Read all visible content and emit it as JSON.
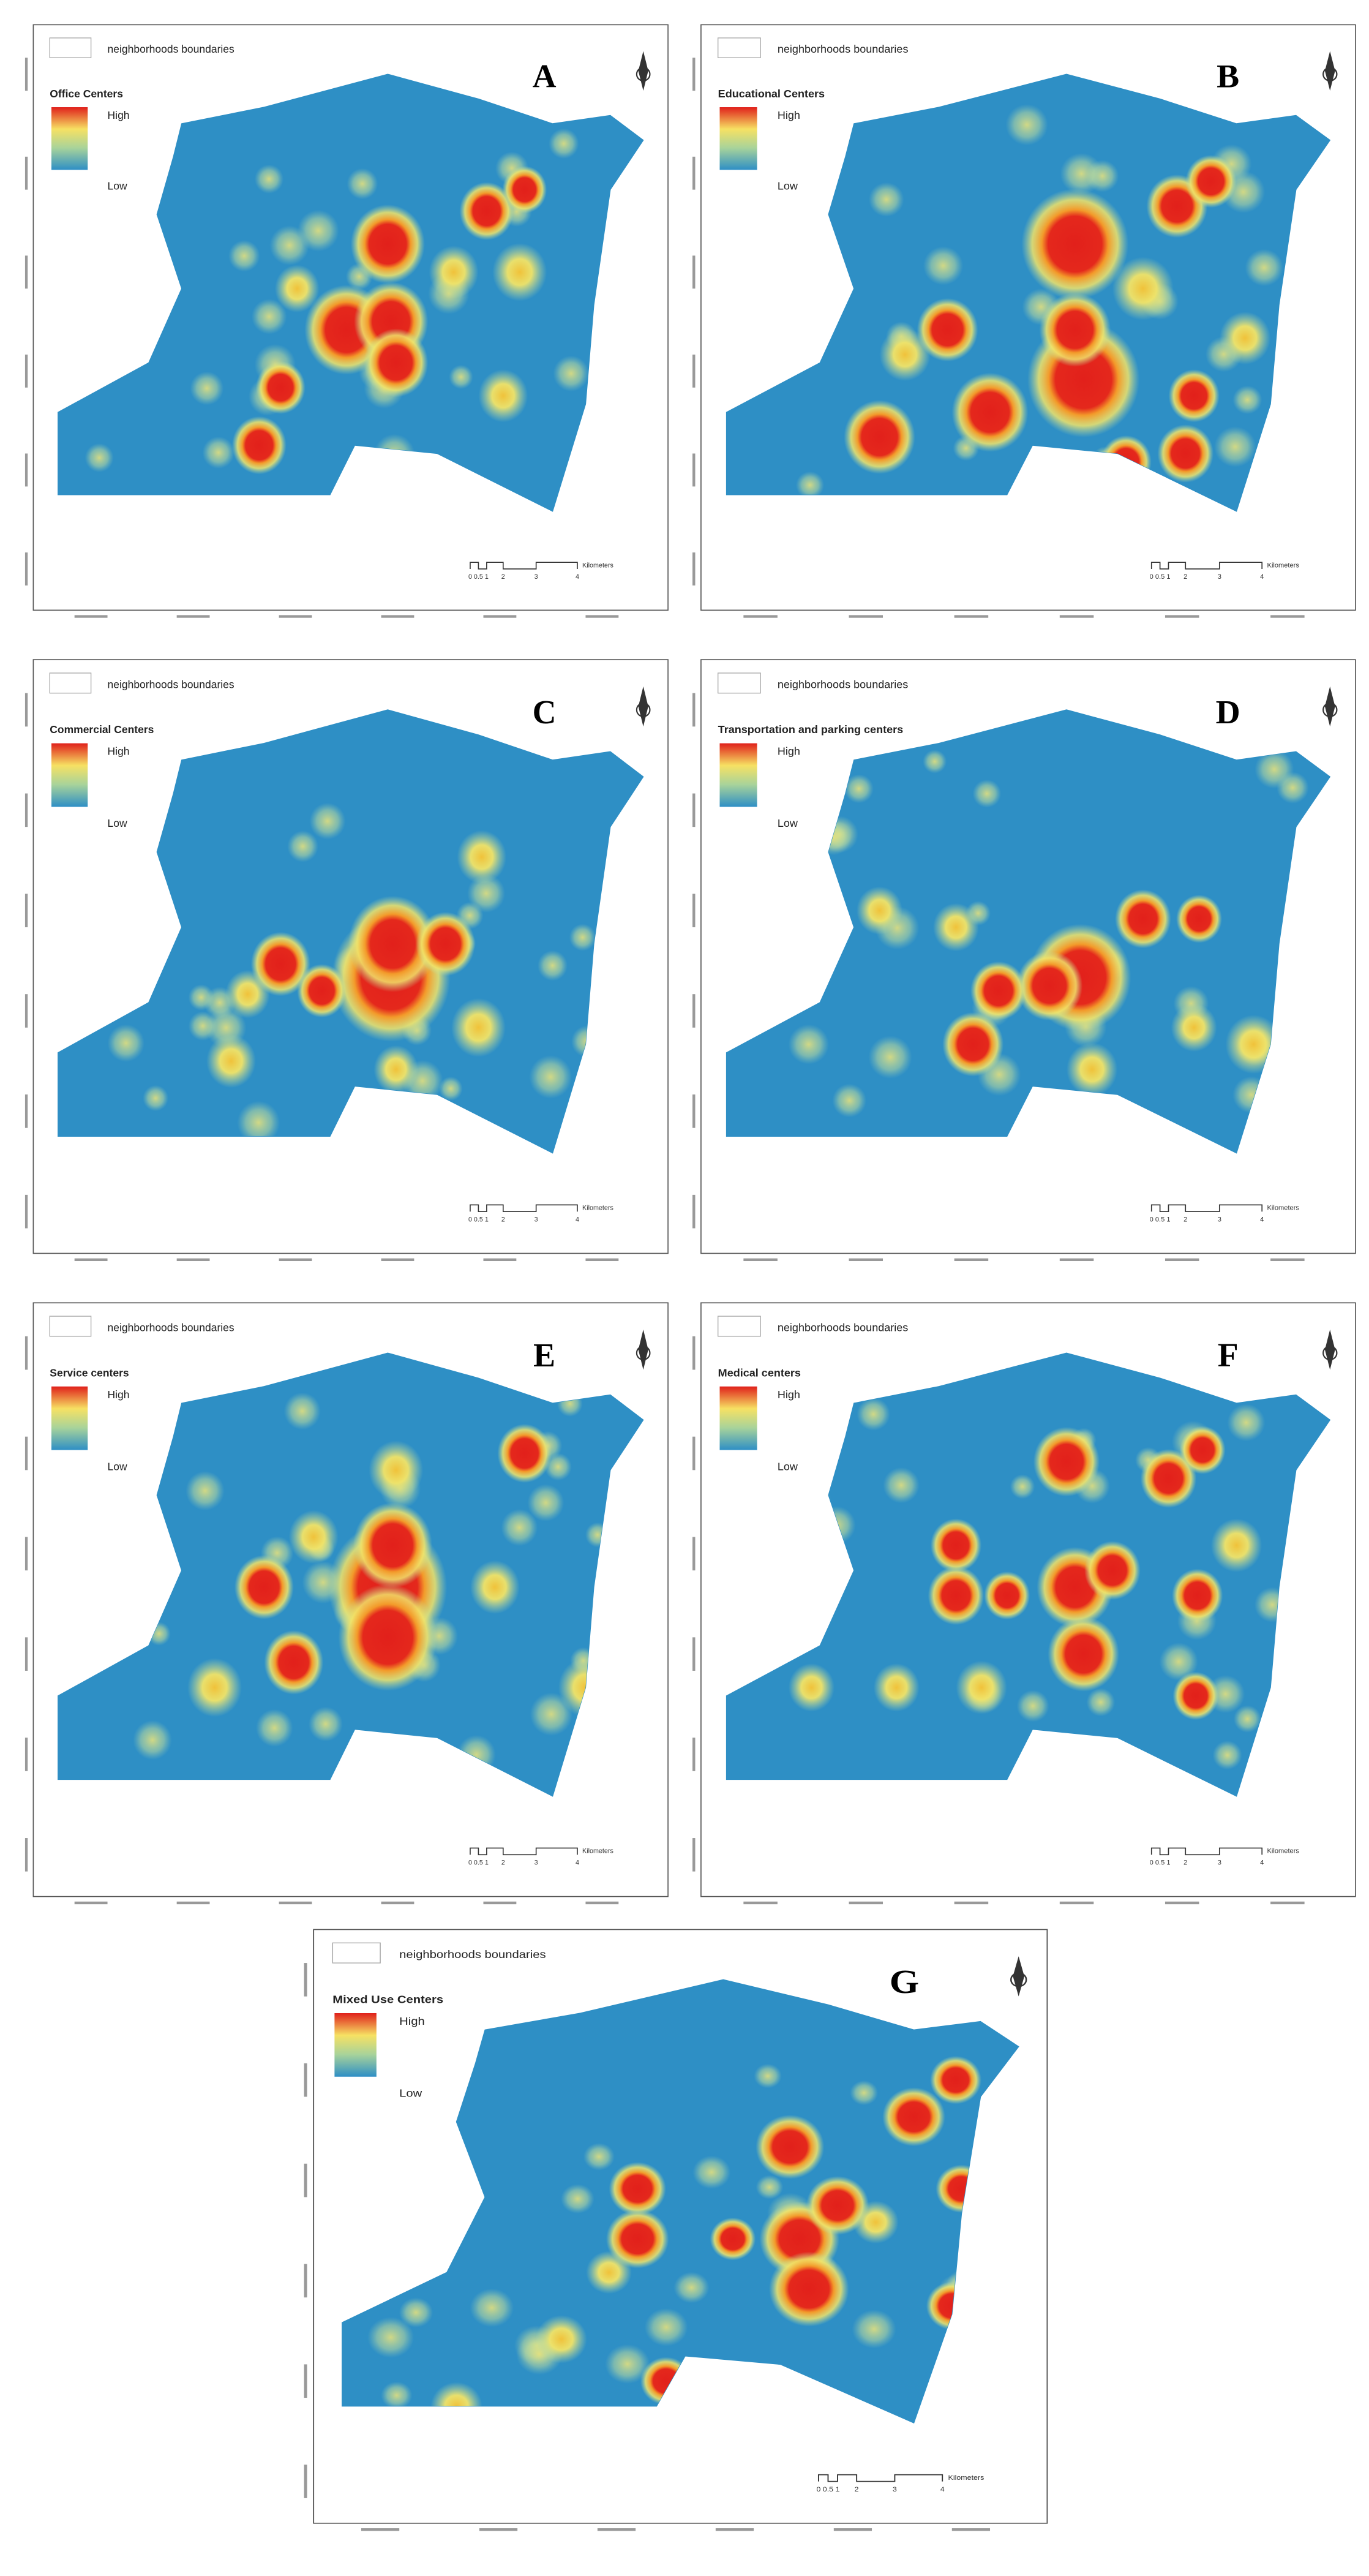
{
  "panels": [
    {
      "letter": "A",
      "boundary_label": "neighborhoods boundaries",
      "legend_title": "Office Centers",
      "legend_high": "High",
      "legend_low": "Low",
      "scale_labels": [
        "0",
        "0.5",
        "1",
        "2",
        "3",
        "4"
      ],
      "scale_unit": "Kilometers"
    },
    {
      "letter": "B",
      "boundary_label": "neighborhoods boundaries",
      "legend_title": "Educational Centers",
      "legend_high": "High",
      "legend_low": "Low",
      "scale_labels": [
        "0",
        "0.5",
        "1",
        "2",
        "3",
        "4"
      ],
      "scale_unit": "Kilometers"
    },
    {
      "letter": "C",
      "boundary_label": "neighborhoods boundaries",
      "legend_title": "Commercial Centers",
      "legend_high": "High",
      "legend_low": "Low",
      "scale_labels": [
        "0",
        "0.5",
        "1",
        "2",
        "3",
        "4"
      ],
      "scale_unit": "Kilometers"
    },
    {
      "letter": "D",
      "boundary_label": "neighborhoods boundaries",
      "legend_title": "Transportation and parking centers",
      "legend_high": "High",
      "legend_low": "Low",
      "scale_labels": [
        "0",
        "0.5",
        "1",
        "2",
        "3",
        "4"
      ],
      "scale_unit": "Kilometers"
    },
    {
      "letter": "E",
      "boundary_label": "neighborhoods boundaries",
      "legend_title": "Service centers",
      "legend_high": "High",
      "legend_low": "Low",
      "scale_labels": [
        "0",
        "0.5",
        "1",
        "2",
        "3",
        "4"
      ],
      "scale_unit": "Kilometers"
    },
    {
      "letter": "F",
      "boundary_label": "neighborhoods boundaries",
      "legend_title": "Medical centers",
      "legend_high": "High",
      "legend_low": "Low",
      "scale_labels": [
        "0",
        "0.5",
        "1",
        "2",
        "3",
        "4"
      ],
      "scale_unit": "Kilometers"
    },
    {
      "letter": "G",
      "boundary_label": "neighborhoods boundaries",
      "legend_title": "Mixed Use Centers",
      "legend_high": "High",
      "legend_low": "Low",
      "scale_labels": [
        "0",
        "0.5",
        "1",
        "2",
        "3",
        "4"
      ],
      "scale_unit": "Kilometers"
    }
  ]
}
